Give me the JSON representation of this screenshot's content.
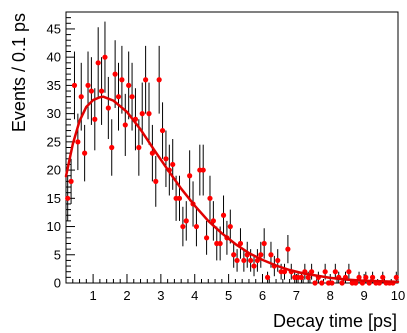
{
  "chart_data": {
    "type": "scatter",
    "title": "",
    "xlabel": "Decay time [ps]",
    "ylabel": "Events / 0.1 ps",
    "xlim": [
      0.2,
      10
    ],
    "ylim": [
      0,
      48
    ],
    "x_ticks": [
      1,
      2,
      3,
      4,
      5,
      6,
      7,
      8,
      9,
      10
    ],
    "y_ticks": [
      0,
      5,
      10,
      15,
      20,
      25,
      30,
      35,
      40,
      45
    ],
    "grid": false,
    "legend": "none",
    "colors": {
      "points": "#ff0000",
      "fit": "#e00000",
      "error_bars": "#000000",
      "axes": "#000000"
    },
    "series": [
      {
        "kind": "points_with_errors",
        "points": [
          [
            0.25,
            15,
            4
          ],
          [
            0.35,
            18,
            4
          ],
          [
            0.45,
            35,
            6
          ],
          [
            0.55,
            25,
            5
          ],
          [
            0.65,
            33,
            6
          ],
          [
            0.75,
            23,
            5
          ],
          [
            0.85,
            35,
            6
          ],
          [
            0.95,
            34,
            6
          ],
          [
            1.05,
            29,
            5.5
          ],
          [
            1.15,
            39,
            6.3
          ],
          [
            1.25,
            34,
            6
          ],
          [
            1.35,
            40,
            6.3
          ],
          [
            1.45,
            31,
            5.5
          ],
          [
            1.55,
            24,
            5
          ],
          [
            1.65,
            37,
            6
          ],
          [
            1.75,
            33,
            6
          ],
          [
            1.85,
            36,
            6
          ],
          [
            1.95,
            28,
            5.5
          ],
          [
            2.05,
            35,
            6
          ],
          [
            2.15,
            33,
            6
          ],
          [
            2.25,
            29,
            5.5
          ],
          [
            2.35,
            24,
            5
          ],
          [
            2.45,
            30,
            5.5
          ],
          [
            2.55,
            36,
            6
          ],
          [
            2.65,
            30,
            5.5
          ],
          [
            2.75,
            23,
            5
          ],
          [
            2.85,
            18,
            4.5
          ],
          [
            2.95,
            36,
            6
          ],
          [
            3.05,
            27,
            5
          ],
          [
            3.15,
            22,
            5
          ],
          [
            3.25,
            20,
            4.5
          ],
          [
            3.35,
            21,
            4.5
          ],
          [
            3.45,
            15,
            4
          ],
          [
            3.55,
            15,
            4
          ],
          [
            3.65,
            10,
            3.5
          ],
          [
            3.75,
            11,
            3.5
          ],
          [
            3.85,
            19,
            4.5
          ],
          [
            3.95,
            14,
            4
          ],
          [
            4.05,
            10,
            3.5
          ],
          [
            4.15,
            20,
            4.5
          ],
          [
            4.25,
            20,
            4.5
          ],
          [
            4.35,
            8,
            3
          ],
          [
            4.45,
            15,
            4
          ],
          [
            4.55,
            11,
            3.5
          ],
          [
            4.65,
            7,
            3
          ],
          [
            4.75,
            7,
            3
          ],
          [
            4.85,
            12,
            3.5
          ],
          [
            4.95,
            8,
            3
          ],
          [
            5.05,
            10,
            3
          ],
          [
            5.15,
            5,
            2.3
          ],
          [
            5.25,
            4,
            2
          ],
          [
            5.35,
            7,
            2.7
          ],
          [
            5.45,
            4,
            2
          ],
          [
            5.55,
            5,
            2.3
          ],
          [
            5.65,
            4,
            2
          ],
          [
            5.75,
            3,
            1.8
          ],
          [
            5.85,
            4,
            2
          ],
          [
            5.95,
            5,
            2.3
          ],
          [
            6.05,
            7,
            2.7
          ],
          [
            6.15,
            1,
            1
          ],
          [
            6.25,
            5,
            2.3
          ],
          [
            6.35,
            3,
            1.8
          ],
          [
            6.45,
            4,
            2
          ],
          [
            6.55,
            2,
            1.4
          ],
          [
            6.65,
            2,
            1.4
          ],
          [
            6.75,
            6,
            2.5
          ],
          [
            6.85,
            2,
            1.4
          ],
          [
            6.95,
            1,
            1
          ],
          [
            7.05,
            1,
            1
          ],
          [
            7.15,
            1,
            1
          ],
          [
            7.25,
            2,
            1.4
          ],
          [
            7.35,
            1,
            1
          ],
          [
            7.45,
            2,
            1.4
          ],
          [
            7.55,
            0,
            0
          ],
          [
            7.65,
            1,
            1
          ],
          [
            7.75,
            0,
            0
          ],
          [
            7.85,
            2,
            1.4
          ],
          [
            7.95,
            0,
            0
          ],
          [
            8.05,
            0,
            0
          ],
          [
            8.15,
            2,
            1.4
          ],
          [
            8.25,
            1,
            1
          ],
          [
            8.35,
            0,
            0
          ],
          [
            8.45,
            1,
            1
          ],
          [
            8.55,
            2,
            1.4
          ],
          [
            8.65,
            0,
            0
          ],
          [
            8.75,
            0,
            0
          ],
          [
            8.85,
            1,
            1
          ],
          [
            8.95,
            0,
            0
          ],
          [
            9.05,
            1,
            1
          ],
          [
            9.15,
            0,
            0
          ],
          [
            9.25,
            1,
            1
          ],
          [
            9.35,
            0,
            0
          ],
          [
            9.45,
            0,
            0
          ],
          [
            9.55,
            1,
            1
          ],
          [
            9.65,
            0,
            0
          ],
          [
            9.75,
            0,
            0
          ],
          [
            9.85,
            0,
            0
          ],
          [
            9.95,
            1,
            1
          ]
        ]
      },
      {
        "kind": "fit_curve",
        "points": [
          [
            0.2,
            18.9
          ],
          [
            0.4,
            24.6
          ],
          [
            0.6,
            28.7
          ],
          [
            0.8,
            31.2
          ],
          [
            1.0,
            32.4
          ],
          [
            1.2,
            32.9
          ],
          [
            1.3,
            33.0
          ],
          [
            1.6,
            32.3
          ],
          [
            2.0,
            30.3
          ],
          [
            2.4,
            27.2
          ],
          [
            2.8,
            23.6
          ],
          [
            3.2,
            20.1
          ],
          [
            3.6,
            16.7
          ],
          [
            4.0,
            13.7
          ],
          [
            4.4,
            11.0
          ],
          [
            4.8,
            8.8
          ],
          [
            5.2,
            6.9
          ],
          [
            5.6,
            5.3
          ],
          [
            6.0,
            4.1
          ],
          [
            6.4,
            3.1
          ],
          [
            6.8,
            2.3
          ],
          [
            7.2,
            1.7
          ],
          [
            7.6,
            1.3
          ],
          [
            8.0,
            0.9
          ],
          [
            8.5,
            0.6
          ],
          [
            9.0,
            0.4
          ],
          [
            9.5,
            0.3
          ],
          [
            10.0,
            0.2
          ]
        ]
      }
    ]
  }
}
